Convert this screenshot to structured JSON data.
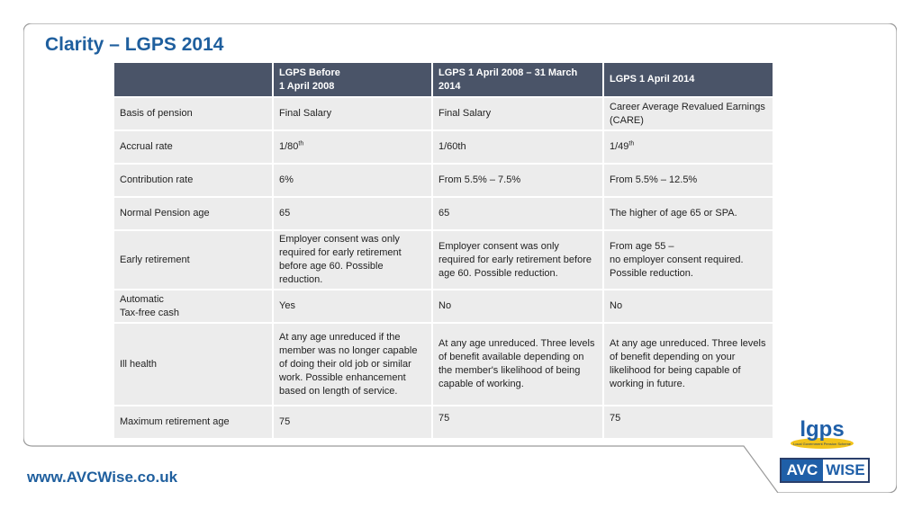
{
  "title": "Clarity – LGPS 2014",
  "table": {
    "headers": [
      {
        "line1": "",
        "line2": ""
      },
      {
        "line1": "LGPS Before",
        "line2": "1 April 2008"
      },
      {
        "line1": "LGPS 1 April 2008 – 31 March",
        "line2": "2014"
      },
      {
        "line1": "LGPS 1 April 2014",
        "line2": ""
      }
    ],
    "rows": [
      {
        "label": "Basis of pension",
        "c1": "Final Salary",
        "c2": "Final Salary",
        "c3": "Career Average Revalued Earnings (CARE)"
      },
      {
        "label": "Accrual rate",
        "c1": "1/80",
        "c1_sup": "th",
        "c2": "1/60th",
        "c3": "1/49",
        "c3_sup": "th"
      },
      {
        "label": "Contribution rate",
        "c1": "6%",
        "c2": "From 5.5% – 7.5%",
        "c3": "From 5.5% – 12.5%"
      },
      {
        "label": "Normal Pension age",
        "c1": "65",
        "c2": "65",
        "c3": "The higher of age 65 or SPA."
      },
      {
        "label": "Early retirement",
        "c1": "Employer consent was only required for early retirement before age 60. Possible reduction.",
        "c2": "Employer consent was only required for early retirement before age 60. Possible reduction.",
        "c3_line1": "From age 55 –",
        "c3_line2": "no employer consent required. Possible reduction."
      },
      {
        "label_line1": "Automatic",
        "label_line2": "Tax-free cash",
        "c1": "Yes",
        "c2": "No",
        "c3": "No"
      },
      {
        "label": "Ill health",
        "c1": "At any age unreduced if the member was no longer capable of doing their old job or similar work. Possible enhancement based on length of service.",
        "c2": "At any age unreduced. Three levels of benefit available depending on the member's likelihood of being capable of working.",
        "c3": "At any age unreduced. Three levels of benefit depending on your likelihood for being capable of working in future."
      },
      {
        "label": "Maximum retirement age",
        "c1": "75",
        "c2": "75",
        "c3": "75"
      }
    ]
  },
  "footer": {
    "url": "www.AVCWise.co.uk"
  },
  "logos": {
    "lgps_text": "lgps",
    "lgps_tagline": "Local Government Pension Scheme",
    "avc_part1": "AVC",
    "avc_part2": "WISE"
  },
  "colors": {
    "accent": "#1f5f9e",
    "header_bg": "#4a5468",
    "cell_bg": "#ececec",
    "lgps_yellow": "#f2c31a",
    "lgps_blue": "#1f5fa8"
  }
}
